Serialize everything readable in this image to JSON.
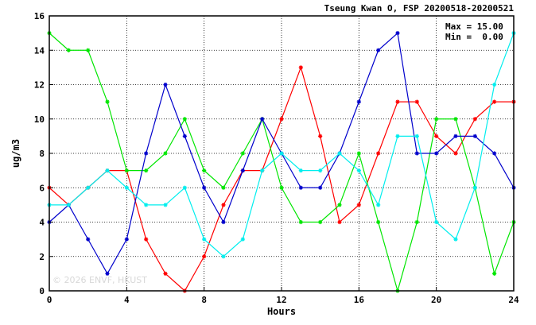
{
  "chart_data": {
    "type": "line",
    "title": "Tseung Kwan O, FSP 20200518-20200521",
    "xlabel": "Hours",
    "ylabel": "ug/m3",
    "xlim": [
      0,
      24
    ],
    "ylim": [
      0,
      16
    ],
    "x_ticks": [
      0,
      4,
      8,
      12,
      16,
      20,
      24
    ],
    "y_ticks": [
      0,
      2,
      4,
      6,
      8,
      10,
      12,
      14,
      16
    ],
    "grid": true,
    "max_label": "Max = 15.00",
    "min_label": "Min =  0.00",
    "watermark": "© 2026  ENVF, HKUST",
    "x": [
      0,
      1,
      2,
      3,
      4,
      5,
      6,
      7,
      8,
      9,
      10,
      11,
      12,
      13,
      14,
      15,
      16,
      17,
      18,
      19,
      20,
      21,
      22,
      23,
      24
    ],
    "series": [
      {
        "color": "#ff0000",
        "values": [
          6,
          5,
          6,
          7,
          7,
          3,
          1,
          0,
          2,
          5,
          7,
          7,
          10,
          13,
          9,
          4,
          5,
          8,
          11,
          11,
          9,
          8,
          10,
          11,
          11
        ]
      },
      {
        "color": "#00e600",
        "values": [
          15,
          14,
          14,
          11,
          7,
          7,
          8,
          10,
          7,
          6,
          8,
          10,
          6,
          4,
          4,
          5,
          8,
          4,
          0,
          4,
          10,
          10,
          6,
          1,
          4
        ]
      },
      {
        "color": "#0000cc",
        "values": [
          4,
          5,
          3,
          1,
          3,
          8,
          12,
          9,
          6,
          4,
          7,
          10,
          8,
          6,
          6,
          8,
          11,
          14,
          15,
          8,
          8,
          9,
          9,
          8,
          6
        ]
      },
      {
        "color": "#00eeee",
        "values": [
          5,
          5,
          6,
          7,
          6,
          5,
          5,
          6,
          3,
          2,
          3,
          7,
          8,
          7,
          7,
          8,
          7,
          5,
          9,
          9,
          4,
          3,
          6,
          12,
          15
        ]
      }
    ]
  }
}
